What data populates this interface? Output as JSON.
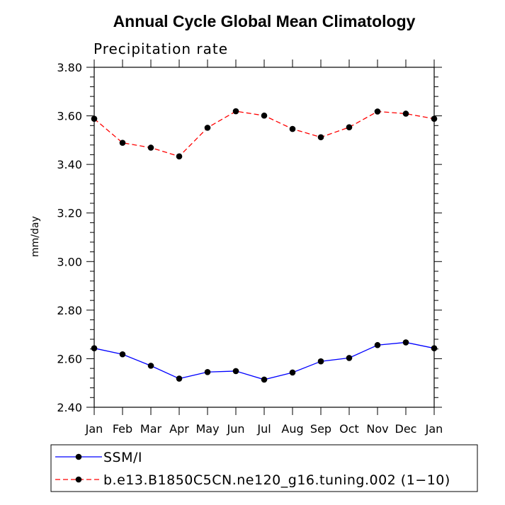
{
  "chart_data": {
    "type": "line",
    "title": "Annual Cycle Global Mean Climatology",
    "subtitle": "Precipitation rate",
    "xlabel": "",
    "ylabel": "mm/day",
    "categories": [
      "Jan",
      "Feb",
      "Mar",
      "Apr",
      "May",
      "Jun",
      "Jul",
      "Aug",
      "Sep",
      "Oct",
      "Nov",
      "Dec",
      "Jan"
    ],
    "ylim": [
      2.4,
      3.8
    ],
    "yticks": [
      "2.40",
      "2.60",
      "2.80",
      "3.00",
      "3.20",
      "3.40",
      "3.60",
      "3.80"
    ],
    "grid": false,
    "legend_position": "bottom",
    "series": [
      {
        "name": "SSM/I",
        "color": "#0000ff",
        "dash": "solid",
        "values": [
          2.643,
          2.618,
          2.571,
          2.518,
          2.545,
          2.549,
          2.514,
          2.543,
          2.589,
          2.603,
          2.656,
          2.667,
          2.643
        ]
      },
      {
        "name": "b.e13.B1850C5CN.ne120_g16.tuning.002 (1−10)",
        "color": "#ff0000",
        "dash": "dashed",
        "values": [
          3.588,
          3.489,
          3.469,
          3.433,
          3.551,
          3.619,
          3.601,
          3.546,
          3.512,
          3.553,
          3.618,
          3.609,
          3.588
        ]
      }
    ]
  }
}
